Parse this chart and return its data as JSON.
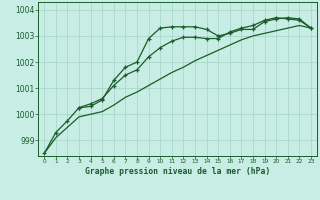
{
  "title": "Graphe pression niveau de la mer (hPa)",
  "background_color": "#c8ede4",
  "grid_color": "#a8d8cc",
  "line_color": "#1a5c2a",
  "xlim": [
    -0.5,
    23.5
  ],
  "ylim": [
    998.4,
    1004.3
  ],
  "yticks": [
    999,
    1000,
    1001,
    1002,
    1003,
    1004
  ],
  "xticks": [
    0,
    1,
    2,
    3,
    4,
    5,
    6,
    7,
    8,
    9,
    10,
    11,
    12,
    13,
    14,
    15,
    16,
    17,
    18,
    19,
    20,
    21,
    22,
    23
  ],
  "series1_x": [
    0,
    1,
    2,
    3,
    4,
    5,
    6,
    7,
    8,
    9,
    10,
    11,
    12,
    13,
    14,
    15,
    16,
    17,
    18,
    19,
    20,
    21,
    22,
    23
  ],
  "series1_y": [
    998.5,
    999.3,
    999.75,
    1000.25,
    1000.3,
    1000.55,
    1001.3,
    1001.8,
    1002.0,
    1002.9,
    1003.3,
    1003.35,
    1003.35,
    1003.35,
    1003.25,
    1003.0,
    1003.1,
    1003.25,
    1003.25,
    1003.55,
    1003.65,
    1003.7,
    1003.65,
    1003.3
  ],
  "series2_x": [
    0,
    1,
    2,
    3,
    4,
    5,
    6,
    7,
    8,
    9,
    10,
    11,
    12,
    13,
    14,
    15,
    16,
    17,
    18,
    19,
    20,
    21,
    22,
    23
  ],
  "series2_y": [
    998.5,
    999.1,
    999.5,
    999.9,
    1000.0,
    1000.1,
    1000.35,
    1000.65,
    1000.85,
    1001.1,
    1001.35,
    1001.6,
    1001.8,
    1002.05,
    1002.25,
    1002.45,
    1002.65,
    1002.85,
    1003.0,
    1003.1,
    1003.2,
    1003.3,
    1003.4,
    1003.3
  ],
  "series3_x": [
    3,
    4,
    5,
    6,
    7,
    8,
    9,
    10,
    11,
    12,
    13,
    14,
    15,
    16,
    17,
    18,
    19,
    20,
    21,
    22,
    23
  ],
  "series3_y": [
    1000.25,
    1000.4,
    1000.6,
    1001.1,
    1001.5,
    1001.7,
    1002.2,
    1002.55,
    1002.8,
    1002.95,
    1002.95,
    1002.9,
    1002.9,
    1003.15,
    1003.3,
    1003.4,
    1003.6,
    1003.7,
    1003.65,
    1003.6,
    1003.3
  ]
}
